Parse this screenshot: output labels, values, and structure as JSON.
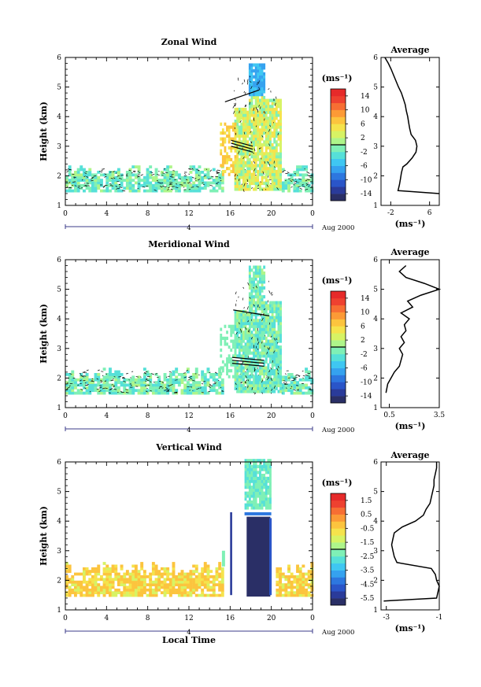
{
  "chart_data": [
    {
      "type": "heatmap",
      "title": "Zonal Wind",
      "ylabel": "Height (km)",
      "xlabel": "",
      "date_label": "4",
      "month_label": "Aug 2000",
      "xlim": [
        0,
        24
      ],
      "ylim": [
        1,
        6
      ],
      "x_ticks": [
        "0",
        "4",
        "8",
        "12",
        "16",
        "20",
        "0"
      ],
      "y_ticks": [
        "1",
        "2",
        "3",
        "4",
        "5",
        "6"
      ],
      "colorbar": {
        "unit": "(ms⁻¹)",
        "ticks": [
          "14",
          "10",
          "6",
          "2",
          "-2",
          "-6",
          "-10",
          "-14"
        ],
        "range": [
          -16,
          16
        ]
      },
      "average_profile": {
        "title": "Average",
        "xlabel": "(ms⁻¹)",
        "x_ticks": [
          "-2",
          "6"
        ],
        "xlim": [
          -4,
          8
        ],
        "heights": [
          1.4,
          1.5,
          1.7,
          1.9,
          2.1,
          2.3,
          2.4,
          2.6,
          2.8,
          3.0,
          3.2,
          3.4,
          3.6,
          3.8,
          4.0,
          4.2,
          4.4,
          4.6,
          4.8,
          5.0,
          5.2,
          5.4,
          5.6,
          5.8,
          6.0
        ],
        "values": [
          8,
          -0.5,
          -0.2,
          0,
          0.2,
          0.5,
          1.3,
          2.4,
          3.2,
          3.4,
          3.1,
          2.2,
          1.9,
          1.7,
          1.5,
          1.2,
          1.0,
          0.6,
          0.2,
          -0.4,
          -0.9,
          -1.4,
          -1.9,
          -2.5,
          -3.2
        ]
      }
    },
    {
      "type": "heatmap",
      "title": "Meridional Wind",
      "ylabel": "Height (km)",
      "xlabel": "",
      "date_label": "4",
      "month_label": "Aug 2000",
      "xlim": [
        0,
        24
      ],
      "ylim": [
        1,
        6
      ],
      "x_ticks": [
        "0",
        "4",
        "8",
        "12",
        "16",
        "20",
        "0"
      ],
      "y_ticks": [
        "1",
        "2",
        "3",
        "4",
        "5",
        "6"
      ],
      "colorbar": {
        "unit": "(ms⁻¹)",
        "ticks": [
          "14",
          "10",
          "6",
          "2",
          "-2",
          "-6",
          "-10",
          "-14"
        ],
        "range": [
          -16,
          16
        ]
      },
      "average_profile": {
        "title": "Average",
        "xlabel": "(ms⁻¹)",
        "x_ticks": [
          "0.5",
          "3.5"
        ],
        "xlim": [
          0,
          3.5
        ],
        "heights": [
          1.5,
          1.8,
          2.0,
          2.2,
          2.4,
          2.6,
          2.8,
          3.0,
          3.2,
          3.4,
          3.6,
          3.8,
          4.0,
          4.2,
          4.4,
          4.6,
          4.8,
          5.0,
          5.2,
          5.4,
          5.6,
          5.8
        ],
        "values": [
          0.3,
          0.4,
          0.6,
          0.8,
          1.1,
          1.2,
          1.3,
          1.1,
          1.4,
          1.2,
          1.5,
          1.4,
          1.7,
          1.2,
          1.9,
          1.6,
          2.4,
          3.5,
          2.6,
          1.5,
          1.1,
          1.5
        ]
      }
    },
    {
      "type": "heatmap",
      "title": "Vertical Wind",
      "ylabel": "Height (km)",
      "xlabel": "Local Time",
      "date_label": "4",
      "month_label": "Aug 2000",
      "xlim": [
        0,
        24
      ],
      "ylim": [
        1,
        6
      ],
      "x_ticks": [
        "0",
        "4",
        "8",
        "12",
        "16",
        "20",
        "0"
      ],
      "y_ticks": [
        "1",
        "2",
        "3",
        "4",
        "5",
        "6"
      ],
      "colorbar": {
        "unit": "(ms⁻¹)",
        "ticks": [
          "1.5",
          "0.5",
          "-0.5",
          "-1.5",
          "-2.5",
          "-3.5",
          "-4.5",
          "-5.5"
        ],
        "range": [
          -6,
          2
        ]
      },
      "average_profile": {
        "title": "Average",
        "xlabel": "(ms⁻¹)",
        "x_ticks": [
          "-3",
          "-1"
        ],
        "xlim": [
          -3.2,
          -1
        ],
        "heights": [
          1.3,
          1.4,
          1.6,
          1.8,
          2.0,
          2.2,
          2.4,
          2.6,
          2.8,
          3.0,
          3.2,
          3.4,
          3.6,
          3.8,
          4.0,
          4.2,
          4.4,
          4.6,
          4.8,
          5.0,
          5.2,
          5.4,
          5.6,
          5.8,
          6.0
        ],
        "values": [
          -3.1,
          -1.1,
          -1.05,
          -1.0,
          -1.1,
          -1.15,
          -1.3,
          -2.6,
          -2.7,
          -2.75,
          -2.8,
          -2.75,
          -2.7,
          -2.4,
          -1.9,
          -1.6,
          -1.5,
          -1.35,
          -1.3,
          -1.25,
          -1.2,
          -1.2,
          -1.15,
          -1.1,
          -1.1
        ]
      }
    }
  ]
}
